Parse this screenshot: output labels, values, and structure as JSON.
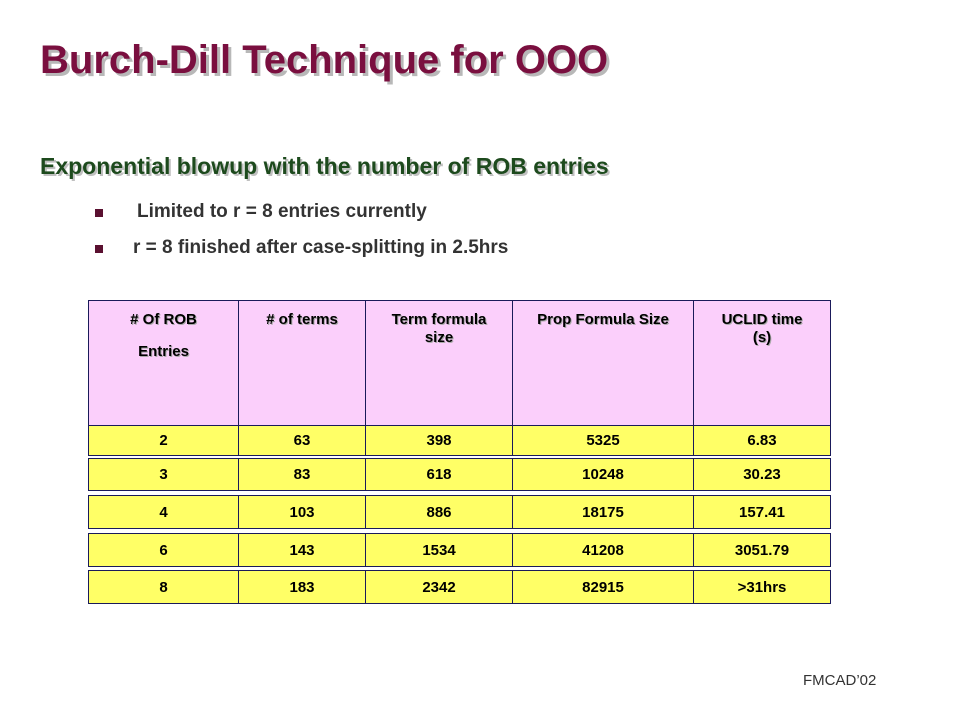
{
  "header": {
    "title": "Burch-Dill Technique for OOO"
  },
  "body": {
    "heading": "Exponential blowup with the number of ROB entries",
    "bullets": [
      "Limited to r = 8 entries currently",
      "r = 8 finished after case-splitting in 2.5hrs"
    ]
  },
  "table": {
    "header": [
      [
        "# Of ROB",
        "Entries"
      ],
      [
        "# of terms"
      ],
      [
        "Term formula size"
      ],
      [
        "Prop Formula Size"
      ],
      [
        "UCLID time (s)"
      ]
    ],
    "rows": [
      [
        2,
        63,
        398,
        5325,
        6.83
      ],
      [
        3,
        83,
        618,
        10248,
        30.23
      ],
      [
        4,
        103,
        886,
        18175,
        157.41
      ],
      [
        6,
        143,
        1534,
        41208,
        3051.79
      ],
      [
        8,
        183,
        2342,
        82915,
        ">31hrs"
      ]
    ]
  },
  "footer": {
    "text": "FMCAD’02"
  }
}
